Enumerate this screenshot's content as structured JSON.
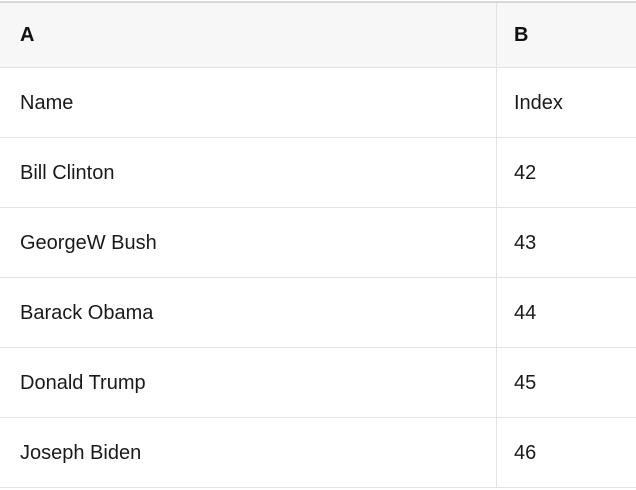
{
  "table": {
    "column_headers": [
      "A",
      "B"
    ],
    "rows": [
      [
        "Name",
        "Index"
      ],
      [
        "Bill Clinton",
        "42"
      ],
      [
        "GeorgeW Bush",
        "43"
      ],
      [
        "Barack Obama",
        "44"
      ],
      [
        "Donald Trump",
        "45"
      ],
      [
        "Joseph Biden",
        "46"
      ]
    ]
  },
  "colors": {
    "header_background": "#f7f7f7",
    "row_background": "#ffffff",
    "border": "#e3e3e3",
    "top_border": "#d8d8d8",
    "text": "#1a1a1a"
  }
}
